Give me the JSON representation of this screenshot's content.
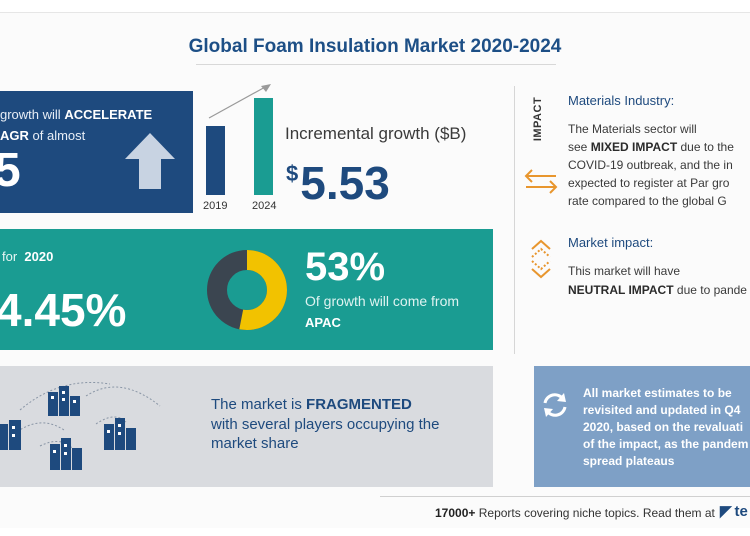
{
  "title": "Global Foam Insulation Market 2020-2024",
  "panel_growth": {
    "line1_prefix": "growth will",
    "line1_bold": "ACCELERATE",
    "line2_bold": "AGR",
    "line2_suffix": "of almost",
    "big_fragment": "5"
  },
  "bars": {
    "label_2019": "2019",
    "label_2024": "2024"
  },
  "incremental": {
    "label": "Incremental growth ($B)",
    "currency": "$",
    "value": "5.53"
  },
  "panel_yoy": {
    "prefix": "for",
    "year": "2020",
    "rate": "4.45%"
  },
  "apac": {
    "percent": "53%",
    "text": "Of growth will come from",
    "region": "APAC",
    "share": 0.53
  },
  "fragmented": {
    "line1_prefix": "The market is",
    "line1_bold": "FRAGMENTED",
    "line2": "with several players occupying the",
    "line3": "market share"
  },
  "impact": {
    "vertical_label": "IMPACT",
    "materials_heading": "Materials Industry:",
    "materials_l1": "The Materials sector will",
    "materials_l2_prefix": "see",
    "materials_l2_bold": "MIXED IMPACT",
    "materials_l2_suffix": "due to the",
    "materials_l3": "COVID-19 outbreak, and the in",
    "materials_l4": "expected to register at Par gro",
    "materials_l5": "rate compared to the global G",
    "market_heading": "Market impact:",
    "market_l1": "This market will have",
    "market_l2_bold": "NEUTRAL IMPACT",
    "market_l2_suffix": "due to pande"
  },
  "estimates": {
    "l1": "All market estimates to be",
    "l2": "revisited and updated in Q4",
    "l3": "2020, based on the revaluati",
    "l4": "of the impact, as the pandem",
    "l5": "spread plateaus"
  },
  "footer": {
    "count": "17000+",
    "text": "Reports covering niche topics. Read them at",
    "logo": "te"
  },
  "colors": {
    "navy": "#1e4a7e",
    "teal": "#1a9c92",
    "grey_panel": "#d9dbdf",
    "light_blue_panel": "#7ea0c6",
    "accent_orange": "#e8962e",
    "accent_yellow": "#f2c200"
  }
}
